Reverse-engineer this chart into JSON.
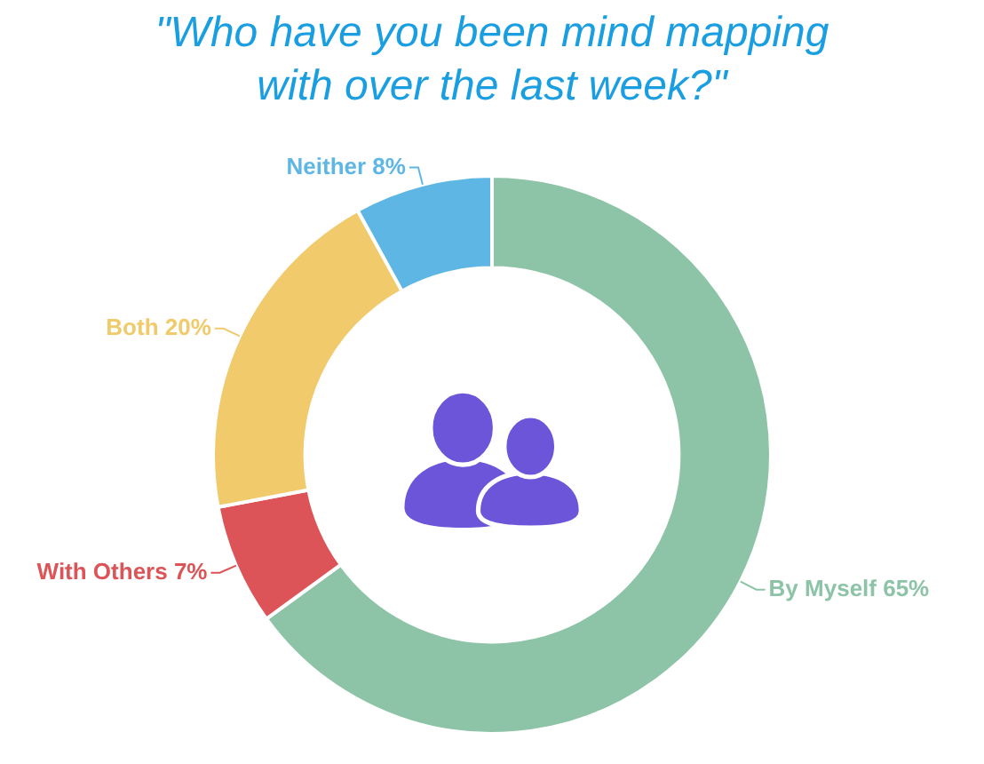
{
  "chart_data": {
    "type": "donut",
    "title": "\"Who have you been mind mapping with over the last week?\"",
    "categories": [
      "By Myself",
      "With Others",
      "Both",
      "Neither"
    ],
    "values": [
      65,
      7,
      20,
      8
    ],
    "value_labels": [
      "65%",
      "7%",
      "20%",
      "8%"
    ],
    "colors": [
      "#8dc3a7",
      "#dc5457",
      "#f0ca6b",
      "#5eb6e4"
    ]
  }
}
